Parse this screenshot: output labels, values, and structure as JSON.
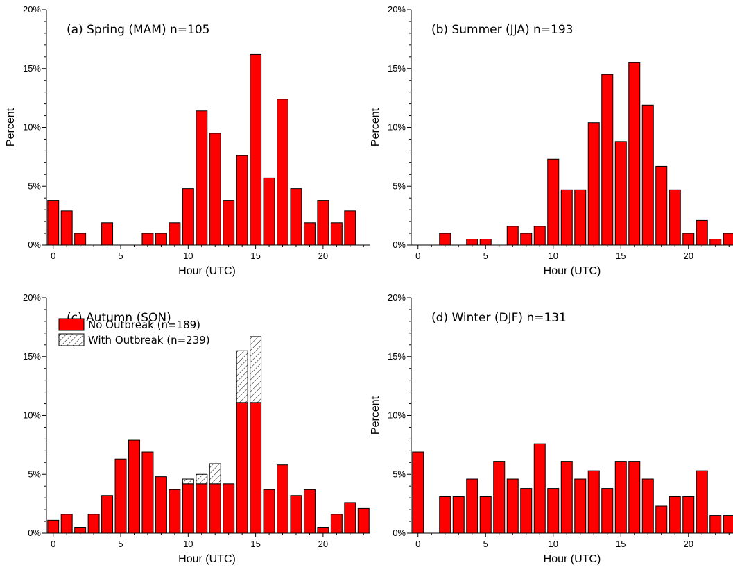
{
  "chart_data": [
    {
      "type": "bar",
      "title": "(a) Spring (MAM)   n=105",
      "xlabel": "Hour (UTC)",
      "ylabel": "Percent",
      "ylim": [
        0,
        20
      ],
      "xlim": [
        -0.5,
        23.5
      ],
      "yticks": [
        "0%",
        "5%",
        "10%",
        "15%",
        "20%"
      ],
      "xticks": [
        "0",
        "5",
        "10",
        "15",
        "20"
      ],
      "x": [
        0,
        1,
        2,
        3,
        4,
        5,
        6,
        7,
        8,
        9,
        10,
        11,
        12,
        13,
        14,
        15,
        16,
        17,
        18,
        19,
        20,
        21,
        22,
        23
      ],
      "series": [
        {
          "values": [
            3.8,
            2.9,
            1.0,
            0,
            1.9,
            0,
            0,
            1.0,
            1.0,
            1.9,
            4.8,
            11.4,
            9.5,
            3.8,
            7.6,
            16.2,
            5.7,
            12.4,
            4.8,
            1.9,
            3.8,
            1.9,
            2.9,
            0
          ],
          "color": "#ff0000"
        }
      ]
    },
    {
      "type": "bar",
      "title": "(b) Summer (JJA) n=193",
      "xlabel": "Hour (UTC)",
      "ylabel": "Percent",
      "ylim": [
        0,
        20
      ],
      "xlim": [
        -0.5,
        23.5
      ],
      "yticks": [
        "0%",
        "5%",
        "10%",
        "15%",
        "20%"
      ],
      "xticks": [
        "0",
        "5",
        "10",
        "15",
        "20"
      ],
      "x": [
        0,
        1,
        2,
        3,
        4,
        5,
        6,
        7,
        8,
        9,
        10,
        11,
        12,
        13,
        14,
        15,
        16,
        17,
        18,
        19,
        20,
        21,
        22,
        23
      ],
      "series": [
        {
          "values": [
            0,
            0,
            1.0,
            0,
            0.5,
            0.5,
            0,
            1.6,
            1.0,
            1.6,
            7.3,
            4.7,
            4.7,
            10.4,
            14.5,
            8.8,
            15.5,
            11.9,
            6.7,
            4.7,
            1.0,
            2.1,
            0.5,
            1.0
          ],
          "color": "#ff0000"
        }
      ]
    },
    {
      "type": "bar",
      "title": "(c) Autumn (SON)",
      "xlabel": "Hour (UTC)",
      "ylabel": "",
      "ylim": [
        0,
        20
      ],
      "xlim": [
        -0.5,
        23.5
      ],
      "yticks": [
        "0%",
        "5%",
        "10%",
        "15%",
        "20%"
      ],
      "xticks": [
        "0",
        "5",
        "10",
        "15",
        "20"
      ],
      "stacked": true,
      "legend_position": "top-left",
      "x": [
        0,
        1,
        2,
        3,
        4,
        5,
        6,
        7,
        8,
        9,
        10,
        11,
        12,
        13,
        14,
        15,
        16,
        17,
        18,
        19,
        20,
        21,
        22,
        23
      ],
      "series": [
        {
          "name": "No Outbreak (n=189)",
          "values": [
            1.1,
            1.6,
            0.5,
            1.6,
            3.2,
            6.3,
            7.9,
            6.9,
            4.8,
            3.7,
            4.2,
            4.2,
            4.2,
            4.2,
            11.1,
            11.1,
            3.7,
            5.8,
            3.2,
            3.7,
            0.5,
            1.6,
            2.6,
            2.1
          ],
          "color": "#ff0000"
        },
        {
          "name": "With Outbreak (n=239)",
          "values": [
            0,
            0,
            0,
            0,
            0,
            0,
            0,
            0,
            0,
            0,
            0.4,
            0.8,
            1.7,
            0,
            4.4,
            5.6,
            0,
            0,
            0,
            0,
            0,
            0,
            0,
            0
          ],
          "color": "#ffffff",
          "pattern": "hatch"
        }
      ]
    },
    {
      "type": "bar",
      "title": "(d) Winter (DJF)   n=131",
      "xlabel": "Hour (UTC)",
      "ylabel": "Percent",
      "ylim": [
        0,
        20
      ],
      "xlim": [
        -0.5,
        23.5
      ],
      "yticks": [
        "0%",
        "5%",
        "10%",
        "15%",
        "20%"
      ],
      "xticks": [
        "0",
        "5",
        "10",
        "15",
        "20"
      ],
      "x": [
        0,
        1,
        2,
        3,
        4,
        5,
        6,
        7,
        8,
        9,
        10,
        11,
        12,
        13,
        14,
        15,
        16,
        17,
        18,
        19,
        20,
        21,
        22,
        23
      ],
      "series": [
        {
          "values": [
            6.9,
            0,
            3.1,
            3.1,
            4.6,
            3.1,
            6.1,
            4.6,
            3.8,
            7.6,
            3.8,
            6.1,
            4.6,
            5.3,
            3.8,
            6.1,
            6.1,
            4.6,
            2.3,
            3.1,
            3.1,
            5.3,
            1.5,
            1.5
          ],
          "color": "#ff0000"
        }
      ]
    }
  ]
}
